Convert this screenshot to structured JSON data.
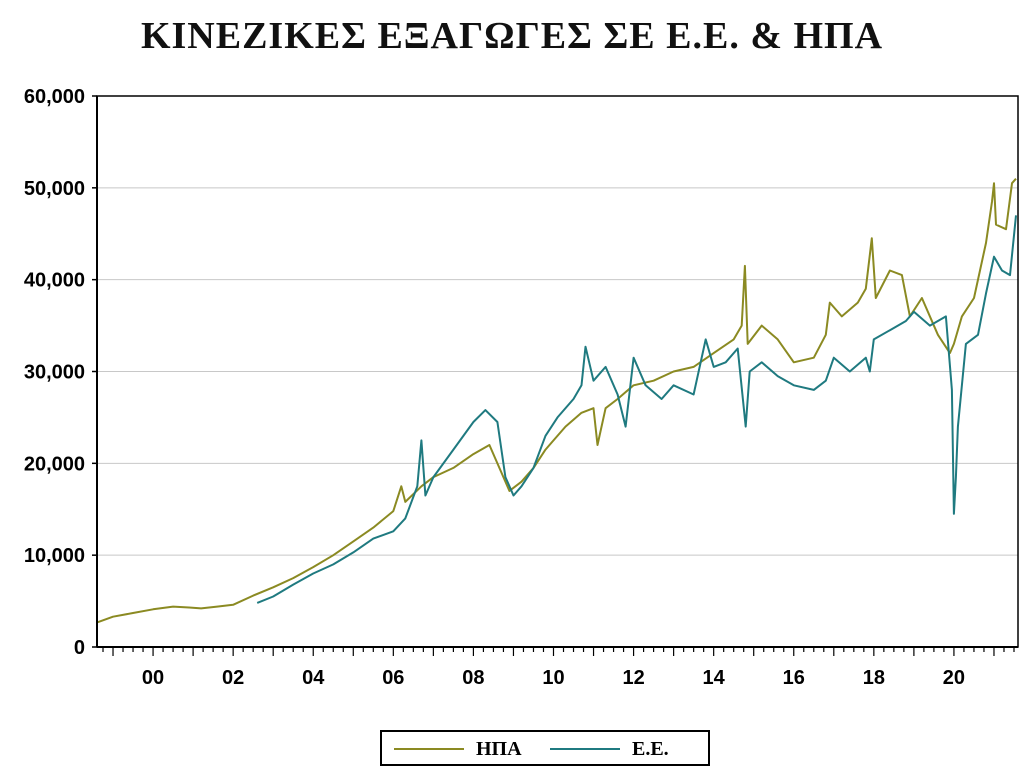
{
  "chart_data": {
    "type": "line",
    "title": "ΚΙΝΕΖΙΚΕΣ ΕΞΑΓΩΓΕΣ ΣΕ Ε.Ε. & ΗΠΑ",
    "xlabel": "",
    "ylabel": "",
    "xlim": [
      1998.6,
      2021.6
    ],
    "ylim": [
      0,
      60000
    ],
    "yticks": [
      0,
      10000,
      20000,
      30000,
      40000,
      50000,
      60000
    ],
    "ytick_labels": [
      "0",
      "10,000",
      "20,000",
      "30,000",
      "40,000",
      "50,000",
      "60,000"
    ],
    "xtick_labels": [
      "00",
      "02",
      "04",
      "06",
      "08",
      "10",
      "12",
      "14",
      "16",
      "18",
      "20"
    ],
    "xtick_years": [
      2000,
      2002,
      2004,
      2006,
      2008,
      2010,
      2012,
      2014,
      2016,
      2018,
      2020
    ],
    "grid": "horizontal",
    "legend_position": "bottom-center",
    "series": [
      {
        "name": "ΗΠΑ",
        "color": "#8b8a22",
        "points": [
          [
            1998.62,
            2700
          ],
          [
            1999.0,
            3300
          ],
          [
            1999.5,
            3700
          ],
          [
            2000.0,
            4100
          ],
          [
            2000.5,
            4400
          ],
          [
            2000.9,
            4300
          ],
          [
            2001.2,
            4200
          ],
          [
            2001.6,
            4400
          ],
          [
            2002.0,
            4600
          ],
          [
            2002.5,
            5600
          ],
          [
            2003.0,
            6500
          ],
          [
            2003.5,
            7500
          ],
          [
            2004.0,
            8700
          ],
          [
            2004.5,
            10000
          ],
          [
            2005.0,
            11500
          ],
          [
            2005.5,
            13000
          ],
          [
            2006.0,
            14800
          ],
          [
            2006.2,
            17500
          ],
          [
            2006.3,
            15800
          ],
          [
            2006.7,
            17500
          ],
          [
            2007.0,
            18500
          ],
          [
            2007.5,
            19500
          ],
          [
            2008.0,
            21000
          ],
          [
            2008.4,
            22000
          ],
          [
            2008.7,
            19000
          ],
          [
            2008.9,
            17000
          ],
          [
            2009.2,
            18000
          ],
          [
            2009.5,
            19500
          ],
          [
            2009.8,
            21500
          ],
          [
            2010.0,
            22500
          ],
          [
            2010.3,
            24000
          ],
          [
            2010.7,
            25500
          ],
          [
            2011.0,
            26000
          ],
          [
            2011.1,
            22000
          ],
          [
            2011.3,
            26000
          ],
          [
            2011.6,
            27000
          ],
          [
            2012.0,
            28500
          ],
          [
            2012.5,
            29000
          ],
          [
            2013.0,
            30000
          ],
          [
            2013.5,
            30500
          ],
          [
            2014.0,
            32000
          ],
          [
            2014.5,
            33500
          ],
          [
            2014.7,
            35000
          ],
          [
            2014.78,
            41500
          ],
          [
            2014.85,
            33000
          ],
          [
            2015.2,
            35000
          ],
          [
            2015.6,
            33500
          ],
          [
            2016.0,
            31000
          ],
          [
            2016.5,
            31500
          ],
          [
            2016.8,
            34000
          ],
          [
            2016.9,
            37500
          ],
          [
            2017.2,
            36000
          ],
          [
            2017.6,
            37500
          ],
          [
            2017.8,
            39000
          ],
          [
            2017.95,
            44500
          ],
          [
            2018.05,
            38000
          ],
          [
            2018.4,
            41000
          ],
          [
            2018.7,
            40500
          ],
          [
            2018.9,
            36000
          ],
          [
            2019.2,
            38000
          ],
          [
            2019.6,
            34000
          ],
          [
            2019.9,
            32000
          ],
          [
            2020.0,
            33000
          ],
          [
            2020.2,
            36000
          ],
          [
            2020.5,
            38000
          ],
          [
            2020.8,
            44000
          ],
          [
            2020.95,
            48500
          ],
          [
            2021.0,
            50500
          ],
          [
            2021.05,
            46000
          ],
          [
            2021.3,
            45500
          ],
          [
            2021.45,
            50500
          ],
          [
            2021.55,
            51000
          ]
        ]
      },
      {
        "name": "Ε.Ε.",
        "color": "#1f7a80",
        "points": [
          [
            2002.6,
            4800
          ],
          [
            2003.0,
            5500
          ],
          [
            2003.5,
            6800
          ],
          [
            2004.0,
            8000
          ],
          [
            2004.5,
            9000
          ],
          [
            2005.0,
            10300
          ],
          [
            2005.5,
            11800
          ],
          [
            2006.0,
            12600
          ],
          [
            2006.3,
            14000
          ],
          [
            2006.6,
            17500
          ],
          [
            2006.7,
            22500
          ],
          [
            2006.8,
            16500
          ],
          [
            2007.0,
            18500
          ],
          [
            2007.5,
            21500
          ],
          [
            2008.0,
            24500
          ],
          [
            2008.3,
            25800
          ],
          [
            2008.6,
            24500
          ],
          [
            2008.8,
            18500
          ],
          [
            2009.0,
            16500
          ],
          [
            2009.2,
            17500
          ],
          [
            2009.5,
            19500
          ],
          [
            2009.8,
            23000
          ],
          [
            2010.1,
            25000
          ],
          [
            2010.5,
            27000
          ],
          [
            2010.7,
            28500
          ],
          [
            2010.8,
            32700
          ],
          [
            2011.0,
            29000
          ],
          [
            2011.3,
            30500
          ],
          [
            2011.6,
            27500
          ],
          [
            2011.8,
            24000
          ],
          [
            2012.0,
            31500
          ],
          [
            2012.3,
            28500
          ],
          [
            2012.7,
            27000
          ],
          [
            2013.0,
            28500
          ],
          [
            2013.5,
            27500
          ],
          [
            2013.8,
            33500
          ],
          [
            2014.0,
            30500
          ],
          [
            2014.3,
            31000
          ],
          [
            2014.6,
            32500
          ],
          [
            2014.8,
            24000
          ],
          [
            2014.9,
            30000
          ],
          [
            2015.2,
            31000
          ],
          [
            2015.6,
            29500
          ],
          [
            2016.0,
            28500
          ],
          [
            2016.5,
            28000
          ],
          [
            2016.8,
            29000
          ],
          [
            2017.0,
            31500
          ],
          [
            2017.4,
            30000
          ],
          [
            2017.8,
            31500
          ],
          [
            2017.9,
            30000
          ],
          [
            2018.0,
            33500
          ],
          [
            2018.4,
            34500
          ],
          [
            2018.8,
            35500
          ],
          [
            2019.0,
            36500
          ],
          [
            2019.4,
            35000
          ],
          [
            2019.8,
            36000
          ],
          [
            2019.95,
            28000
          ],
          [
            2020.0,
            14500
          ],
          [
            2020.05,
            18500
          ],
          [
            2020.1,
            24000
          ],
          [
            2020.3,
            33000
          ],
          [
            2020.6,
            34000
          ],
          [
            2020.8,
            38500
          ],
          [
            2021.0,
            42500
          ],
          [
            2021.2,
            41000
          ],
          [
            2021.4,
            40500
          ],
          [
            2021.55,
            47000
          ]
        ]
      }
    ]
  }
}
